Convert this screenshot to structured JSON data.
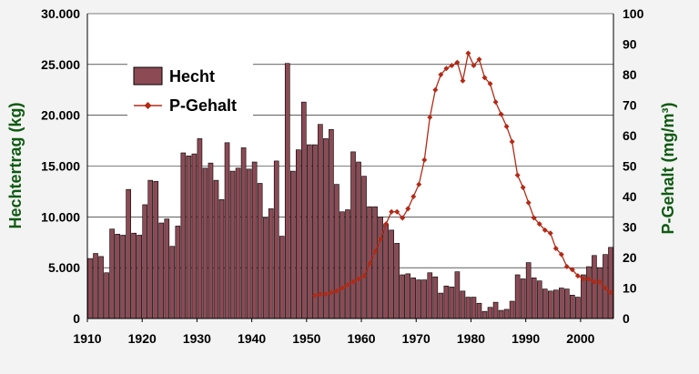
{
  "chart_data": {
    "type": "bar",
    "title": "",
    "x_start": 1910,
    "x_end": 2005,
    "x_ticks": [
      "1910",
      "1920",
      "1930",
      "1940",
      "1950",
      "1960",
      "1970",
      "1980",
      "1990",
      "2000"
    ],
    "y_left": {
      "label": "Hechtertrag (kg)",
      "ylim": [
        0,
        30000
      ],
      "ticks": [
        "0",
        "5.000",
        "10.000",
        "15.000",
        "20.000",
        "25.000",
        "30.000"
      ]
    },
    "y_right": {
      "label": "P-Gehalt (mg/m³)",
      "ylim": [
        0,
        100
      ],
      "ticks": [
        "0",
        "10",
        "20",
        "30",
        "40",
        "50",
        "60",
        "70",
        "80",
        "90",
        "100"
      ]
    },
    "grid": true,
    "legend_position": "upper-left",
    "series": [
      {
        "name": "Hecht",
        "type": "bar",
        "axis": "left",
        "color": "#8c4a55",
        "x": [
          1910,
          1911,
          1912,
          1913,
          1914,
          1915,
          1916,
          1917,
          1918,
          1919,
          1920,
          1921,
          1922,
          1923,
          1924,
          1925,
          1926,
          1927,
          1928,
          1929,
          1930,
          1931,
          1932,
          1933,
          1934,
          1935,
          1936,
          1937,
          1938,
          1939,
          1940,
          1941,
          1942,
          1943,
          1944,
          1945,
          1946,
          1947,
          1948,
          1949,
          1950,
          1951,
          1952,
          1953,
          1954,
          1955,
          1956,
          1957,
          1958,
          1959,
          1960,
          1961,
          1962,
          1963,
          1964,
          1965,
          1966,
          1967,
          1968,
          1969,
          1970,
          1971,
          1972,
          1973,
          1974,
          1975,
          1976,
          1977,
          1978,
          1979,
          1980,
          1981,
          1982,
          1983,
          1984,
          1985,
          1986,
          1987,
          1988,
          1989,
          1990,
          1991,
          1992,
          1993,
          1994,
          1995,
          1996,
          1997,
          1998,
          1999,
          2000,
          2001,
          2002,
          2003,
          2004,
          2005
        ],
        "values": [
          5900,
          6400,
          6100,
          4500,
          8800,
          8300,
          8200,
          12700,
          8400,
          8200,
          11200,
          13600,
          13500,
          9400,
          9800,
          7100,
          9100,
          16300,
          16000,
          16200,
          17700,
          14800,
          15300,
          13600,
          11700,
          17300,
          14500,
          14800,
          16800,
          14700,
          15400,
          13300,
          9900,
          10800,
          15500,
          8100,
          25100,
          14500,
          16600,
          21300,
          17100,
          17100,
          19100,
          17700,
          18600,
          13200,
          10500,
          10700,
          16400,
          15400,
          14000,
          11000,
          11000,
          10000,
          9300,
          8700,
          7400,
          4300,
          4400,
          4000,
          3800,
          3800,
          4500,
          4100,
          2500,
          3200,
          3100,
          4600,
          2700,
          2100,
          2100,
          1500,
          700,
          1100,
          1600,
          800,
          900,
          1700,
          4300,
          3900,
          5500,
          4000,
          3700,
          2900,
          2700,
          2800,
          3000,
          2900,
          2300,
          2100,
          4300,
          5100,
          6200,
          5000,
          6300,
          7000
        ]
      },
      {
        "name": "P-Gehalt",
        "type": "line",
        "axis": "right",
        "color": "#b32a16",
        "x": [
          1951,
          1952,
          1953,
          1954,
          1955,
          1956,
          1957,
          1958,
          1959,
          1960,
          1961,
          1962,
          1963,
          1964,
          1965,
          1966,
          1967,
          1968,
          1969,
          1970,
          1971,
          1972,
          1973,
          1974,
          1975,
          1976,
          1977,
          1978,
          1979,
          1980,
          1981,
          1982,
          1983,
          1984,
          1985,
          1986,
          1987,
          1988,
          1989,
          1990,
          1991,
          1992,
          1993,
          1994,
          1995,
          1996,
          1997,
          1998,
          1999,
          2000,
          2001,
          2002,
          2003,
          2004,
          2005
        ],
        "values": [
          7.5,
          8,
          8,
          8.5,
          9,
          10,
          11,
          12,
          13,
          14,
          18,
          22,
          26,
          31,
          35,
          35,
          33,
          36,
          40,
          44,
          52,
          66,
          75,
          80,
          82,
          83,
          84,
          78,
          87,
          83,
          85,
          79,
          77,
          71,
          67,
          63,
          58,
          47,
          43,
          38,
          33,
          31,
          29,
          28,
          23,
          21,
          17,
          16,
          14,
          13,
          13,
          12,
          12,
          10,
          8.5
        ]
      }
    ]
  }
}
